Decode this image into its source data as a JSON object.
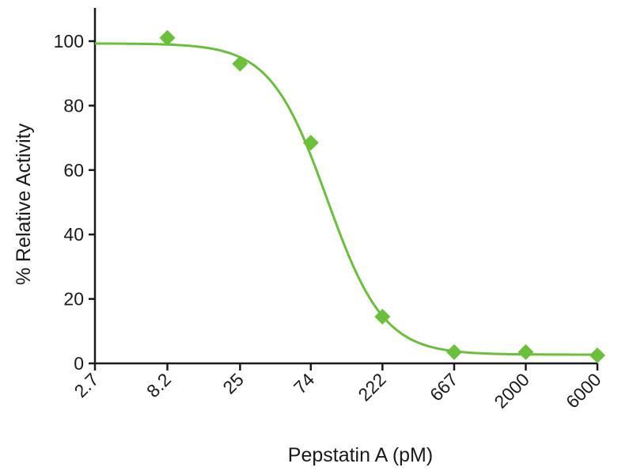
{
  "chart_data": {
    "type": "scatter",
    "title": "",
    "xlabel": "Pepstatin A (pM)",
    "ylabel": "% Relative Activity",
    "x_scale": "log",
    "x_tick_labels": [
      "2.7",
      "8.2",
      "25",
      "74",
      "222",
      "667",
      "2000",
      "6000"
    ],
    "x_tick_values": [
      2.7,
      8.2,
      25,
      74,
      222,
      667,
      2000,
      6000
    ],
    "y_ticks": [
      0,
      20,
      40,
      60,
      80,
      100
    ],
    "ylim": [
      0,
      110
    ],
    "xlim": [
      2.7,
      6000
    ],
    "series": [
      {
        "name": "Pepstatin A",
        "marker": "diamond",
        "x": [
          8.2,
          25,
          74,
          222,
          667,
          2000,
          6000
        ],
        "y": [
          101,
          93,
          68.5,
          14.5,
          3.5,
          3.5,
          2.5
        ]
      }
    ],
    "fit": {
      "type": "four-parameter logistic",
      "top": 99.3,
      "bottom": 2.7,
      "ic50": 95,
      "hill": 2.3
    },
    "colors": {
      "series": "#6abf3b",
      "axis": "#1a1a1a"
    }
  }
}
